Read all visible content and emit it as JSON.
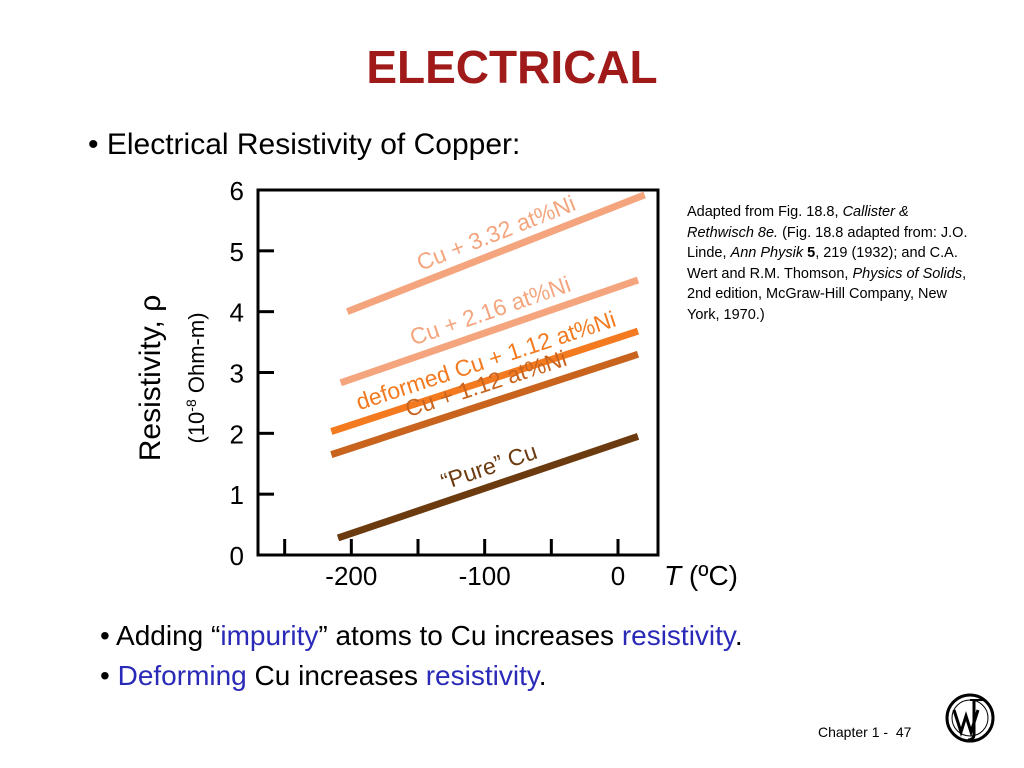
{
  "slide": {
    "title": "ELECTRICAL",
    "bullet1": "Electrical Resistivity of Copper:",
    "bullet2": {
      "pre": "Adding “",
      "impurity": "impurity",
      "mid": "” atoms to Cu increases ",
      "resistivity": "resistivity",
      "end": "."
    },
    "bullet3": {
      "deforming": "Deforming",
      "mid": " Cu increases ",
      "resistivity": "resistivity",
      "end": "."
    },
    "bullet_symbol": "•"
  },
  "citation": {
    "p1": "Adapted from Fig. 18.8, ",
    "p1_italic": "Callister & Rethwisch 8e.",
    "p2": " (Fig. 18.8 adapted from: J.O. Linde, ",
    "p2_italic": "Ann Physik",
    "p2_bold": " 5",
    "p3": ", 219 (1932); and C.A. Wert and R.M. Thomson, ",
    "p3_italic": "Physics of Solids",
    "p4": ", 2nd edition, McGraw-Hill Company, New York, 1970.)"
  },
  "footer": {
    "chapter": "Chapter 1 -",
    "page": "47"
  },
  "colors": {
    "title": "#a01a1a",
    "highlight": "#2a2ab8"
  },
  "chart_data": {
    "type": "line",
    "ylabel_main": "Resistivity, ρ",
    "ylabel_unit_pre": "(10",
    "ylabel_unit_sup": "-8",
    "ylabel_unit_post": " Ohm-m)",
    "xlabel_var": "T",
    "xlabel_unit": " (ºC)",
    "xlim": [
      -270,
      30
    ],
    "ylim": [
      0,
      6
    ],
    "x_tick_labels": [
      {
        "value": -200,
        "label": "-200"
      },
      {
        "value": -100,
        "label": "-100"
      },
      {
        "value": 0,
        "label": "0"
      }
    ],
    "x_tick_marks": [
      -250,
      -200,
      -150,
      -100,
      -50,
      0
    ],
    "y_ticks": [
      0,
      1,
      2,
      3,
      4,
      5,
      6
    ],
    "grid": false,
    "series": [
      {
        "name": "Cu + 3.32 at%Ni",
        "color": "#f4a57e",
        "x": [
          -203,
          20
        ],
        "y": [
          4.0,
          5.92
        ]
      },
      {
        "name": "Cu + 2.16 at%Ni",
        "color": "#f4a57e",
        "x": [
          -208,
          15
        ],
        "y": [
          2.83,
          4.52
        ]
      },
      {
        "name": "deformed Cu + 1.12 at%Ni",
        "color": "#f47a20",
        "x": [
          -215,
          15
        ],
        "y": [
          2.03,
          3.68
        ]
      },
      {
        "name": "Cu + 1.12 at%Ni",
        "color": "#c8641e",
        "x": [
          -215,
          15
        ],
        "y": [
          1.65,
          3.3
        ]
      },
      {
        "name": "“Pure” Cu",
        "color": "#6b3a0e",
        "x": [
          -210,
          15
        ],
        "y": [
          0.28,
          1.95
        ]
      }
    ]
  }
}
